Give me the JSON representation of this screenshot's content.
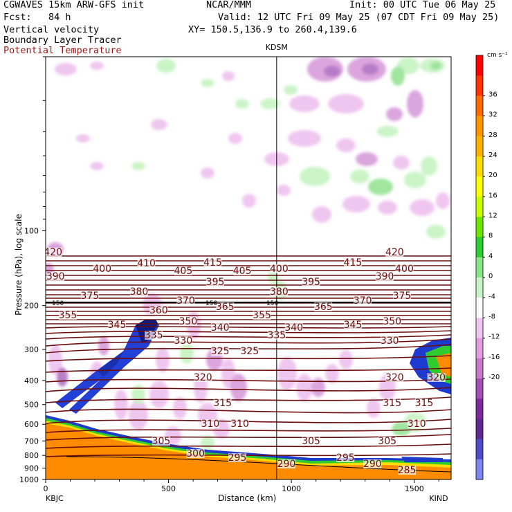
{
  "header": {
    "model_title": "CGWAVES 15km ARW-GFS init",
    "forecast": "Fcst:   84 h",
    "field_vv": "Vertical velocity",
    "field_tracer": "Boundary Layer Tracer",
    "field_theta": "Potential Temperature",
    "org": "NCAR/MMM",
    "init": "Init: 00 UTC Tue 06 May 25",
    "valid": "Valid: 12 UTC Fri 09 May 25 (07 CDT Fri 09 May 25)",
    "xy": "XY= 150.5,136.9 to 260.4,139.6",
    "theta_color": "#6b0d0d"
  },
  "chart_data": {
    "type": "heatmap",
    "title": "Vertical velocity / Boundary Layer Tracer / Potential Temperature cross-section",
    "xlabel": "Distance (km)",
    "ylabel": "Pressure (hPa), log scale",
    "x_ticks": [
      0,
      500,
      1000,
      1500
    ],
    "xlim": [
      0,
      1650
    ],
    "y_ticks": [
      100,
      200,
      300,
      400,
      500,
      600,
      700,
      800,
      900,
      1000
    ],
    "ylim": [
      1000,
      20
    ],
    "y_scale": "log",
    "left_station": "KBJC",
    "right_station": "KIND",
    "mid_station": "KDSM",
    "mid_station_km": 940,
    "colorbar": {
      "units": "cm s⁻¹",
      "labels": [
        36,
        32,
        28,
        24,
        20,
        16,
        12,
        8,
        4,
        0,
        -4,
        -8,
        -12,
        -16,
        -20
      ],
      "colors": [
        "#ff0000",
        "#ff3300",
        "#ff6a00",
        "#ff9500",
        "#ffb300",
        "#ffdd00",
        "#ffff00",
        "#c8ff00",
        "#6ee600",
        "#2fcc2f",
        "#88e888",
        "#c9f5c9",
        "#ffffff",
        "#f0c6f0",
        "#e29ce2",
        "#c87ac8",
        "#a54fb5",
        "#7d2a9b",
        "#5e2a8e",
        "#4d4cc6",
        "#7d85f5"
      ]
    },
    "isentropes": [
      {
        "theta": 420,
        "label_x_km": [
          30,
          1420
        ]
      },
      {
        "theta": 415,
        "label_x_km": [
          680,
          1250
        ]
      },
      {
        "theta": 410,
        "label_x_km": [
          410
        ]
      },
      {
        "theta": 405,
        "label_x_km": [
          560,
          800
        ]
      },
      {
        "theta": 400,
        "label_x_km": [
          230,
          950,
          1460
        ]
      },
      {
        "theta": 395,
        "label_x_km": [
          690,
          1080
        ]
      },
      {
        "theta": 390,
        "label_x_km": [
          40,
          1380
        ]
      },
      {
        "theta": 380,
        "label_x_km": [
          380,
          950
        ]
      },
      {
        "theta": 375,
        "label_x_km": [
          180,
          1450
        ]
      },
      {
        "theta": 370,
        "label_x_km": [
          570,
          1290
        ]
      },
      {
        "theta": 365,
        "label_x_km": [
          730,
          1130
        ]
      },
      {
        "theta": 360,
        "label_x_km": [
          460
        ]
      },
      {
        "theta": 355,
        "label_x_km": [
          90,
          880
        ]
      },
      {
        "theta": 350,
        "label_x_km": [
          580,
          1410
        ]
      },
      {
        "theta": 345,
        "label_x_km": [
          290,
          1250
        ]
      },
      {
        "theta": 340,
        "label_x_km": [
          710,
          1010
        ]
      },
      {
        "theta": 335,
        "label_x_km": [
          440,
          940
        ]
      },
      {
        "theta": 330,
        "label_x_km": [
          560,
          1400
        ]
      },
      {
        "theta": 325,
        "label_x_km": [
          710,
          830
        ]
      },
      {
        "theta": 320,
        "label_x_km": [
          640,
          1420,
          1590
        ]
      },
      {
        "theta": 315,
        "label_x_km": [
          720,
          1410,
          1540
        ]
      },
      {
        "theta": 310,
        "label_x_km": [
          670,
          790,
          1510
        ]
      },
      {
        "theta": 305,
        "label_x_km": [
          470,
          1080,
          1390
        ]
      },
      {
        "theta": 300,
        "label_x_km": [
          610
        ]
      },
      {
        "theta": 295,
        "label_x_km": [
          780,
          1220
        ]
      },
      {
        "theta": 290,
        "label_x_km": [
          980,
          1330
        ]
      },
      {
        "theta": 285,
        "label_x_km": [
          1470
        ]
      }
    ],
    "marker_150_labels": [
      "150",
      "150",
      "150"
    ]
  }
}
